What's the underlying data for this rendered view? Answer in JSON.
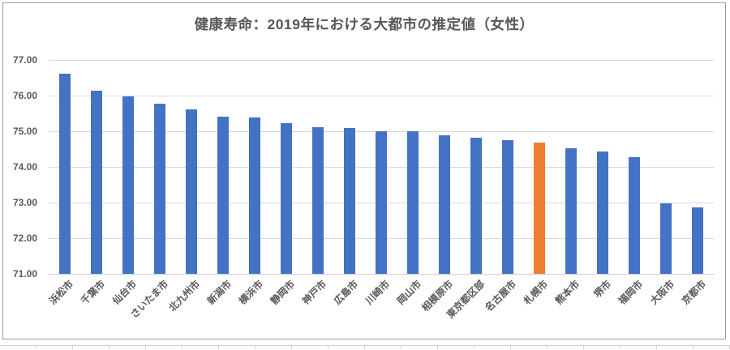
{
  "chart_data": {
    "type": "bar",
    "title": "健康寿命：2019年における大都市の推定値（女性）",
    "categories": [
      "浜松市",
      "千葉市",
      "仙台市",
      "さいたま市",
      "北九州市",
      "新潟市",
      "横浜市",
      "静岡市",
      "神戸市",
      "広島市",
      "川崎市",
      "岡山市",
      "相模原市",
      "東京都区部",
      "名古屋市",
      "札幌市",
      "熊本市",
      "堺市",
      "福岡市",
      "大阪市",
      "京都市"
    ],
    "values": [
      76.62,
      76.13,
      75.97,
      75.77,
      75.61,
      75.42,
      75.38,
      75.22,
      75.11,
      75.09,
      75.01,
      75.0,
      74.89,
      74.81,
      74.76,
      74.68,
      74.52,
      74.43,
      74.28,
      72.97,
      72.86
    ],
    "highlight_category": "札幌市",
    "ytick_labels": [
      "71.00",
      "72.00",
      "73.00",
      "74.00",
      "75.00",
      "76.00",
      "77.00"
    ],
    "ylim": [
      71,
      77
    ],
    "xlabel": "",
    "ylabel": "",
    "grid": true,
    "legend": "none",
    "colors": {
      "bar": "#4472C4",
      "highlight": "#ED7D31",
      "gridline": "#d9d9d9",
      "axis_text": "#595959",
      "title_text": "#575757",
      "chart_border": "#9a9a9a"
    }
  }
}
